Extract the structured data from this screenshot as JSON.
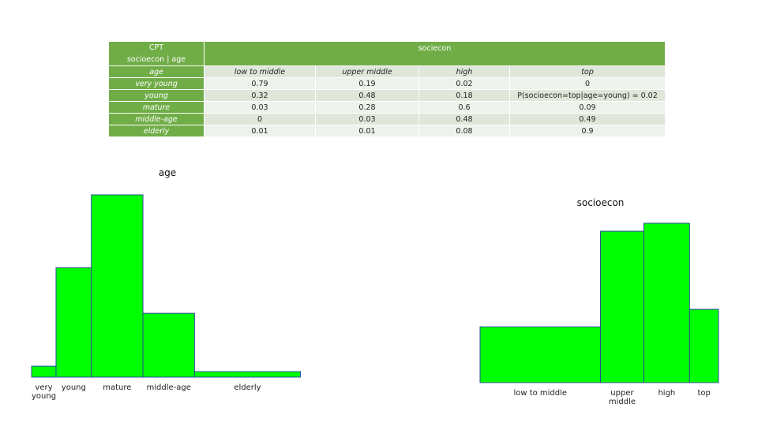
{
  "table": {
    "corner": [
      "CPT",
      "socioecon | age"
    ],
    "group_header": "sociecon",
    "columns": [
      "age",
      "low to middle",
      "upper middle",
      "high",
      "top"
    ],
    "rows": [
      [
        "very young",
        0.79,
        0.19,
        0.02,
        0
      ],
      [
        "young",
        0.32,
        0.48,
        0.18,
        "P(socioecon=top|age=young) = 0.02"
      ],
      [
        "mature",
        0.03,
        0.28,
        0.6,
        0.09
      ],
      [
        "middle-age",
        0,
        0.03,
        0.48,
        0.49
      ],
      [
        "elderly",
        0.01,
        0.01,
        0.08,
        0.9
      ]
    ]
  },
  "chart_data": [
    {
      "type": "bar",
      "title": "age",
      "categories": [
        "very young",
        "young",
        "mature",
        "middle-age",
        "elderly"
      ],
      "values": [
        0.06,
        0.6,
        1.0,
        0.35,
        0.03
      ],
      "widths": [
        0.09,
        0.13,
        0.19,
        0.19,
        0.39
      ],
      "color": "#00ff00",
      "ylim": [
        0,
        1
      ]
    },
    {
      "type": "bar",
      "title": "socioecon",
      "categories": [
        "low to middle",
        "upper middle",
        "high",
        "top"
      ],
      "values": [
        0.35,
        0.95,
        1.0,
        0.46
      ],
      "widths": [
        0.5,
        0.18,
        0.19,
        0.12
      ],
      "color": "#00ff00",
      "ylim": [
        0,
        1
      ]
    }
  ]
}
